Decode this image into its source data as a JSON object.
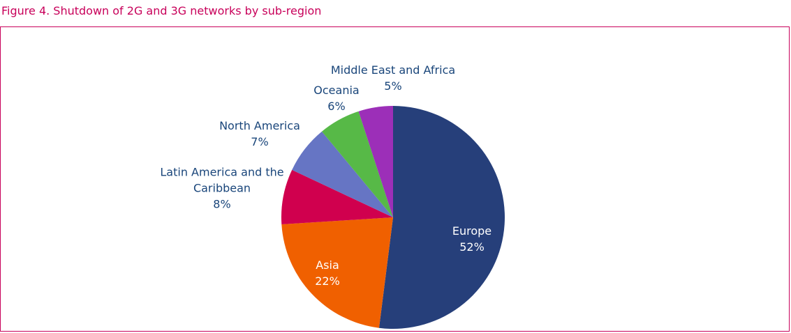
{
  "chart_data": {
    "type": "pie",
    "title": "Figure 4. Shutdown of 2G and 3G networks by sub-region",
    "categories": [
      "Europe",
      "Asia",
      "Latin America and the Caribbean",
      "North America",
      "Oceania",
      "Middle East and Africa"
    ],
    "values": [
      52,
      22,
      8,
      7,
      6,
      5
    ],
    "value_labels": [
      "52%",
      "22%",
      "8%",
      "7%",
      "6%",
      "5%"
    ],
    "colors": [
      "#263f7a",
      "#f06000",
      "#d0004e",
      "#6675c4",
      "#57b947",
      "#9c2fb8"
    ]
  }
}
